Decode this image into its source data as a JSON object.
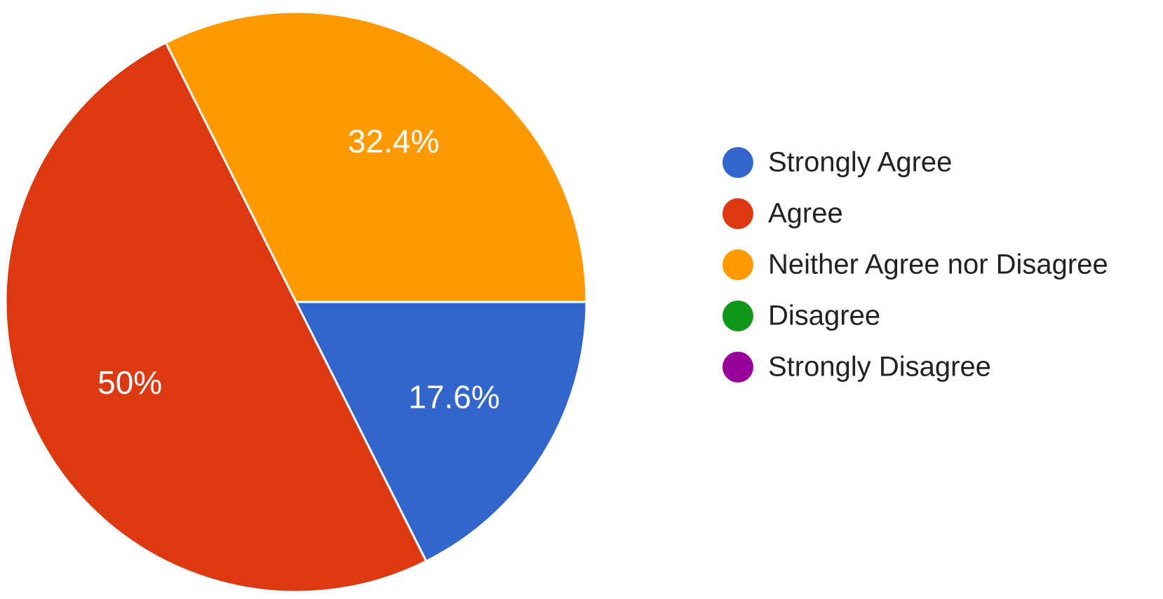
{
  "chart_data": {
    "type": "pie",
    "categories": [
      "Strongly Agree",
      "Agree",
      "Neither Agree nor Disagree",
      "Disagree",
      "Strongly Disagree"
    ],
    "values": [
      17.6,
      50,
      32.4,
      0,
      0
    ],
    "value_labels": [
      "17.6%",
      "50%",
      "32.4%",
      null,
      null
    ],
    "colors": [
      "#3366cc",
      "#dc3912",
      "#ff9900",
      "#109618",
      "#990099"
    ],
    "legend": "right"
  }
}
